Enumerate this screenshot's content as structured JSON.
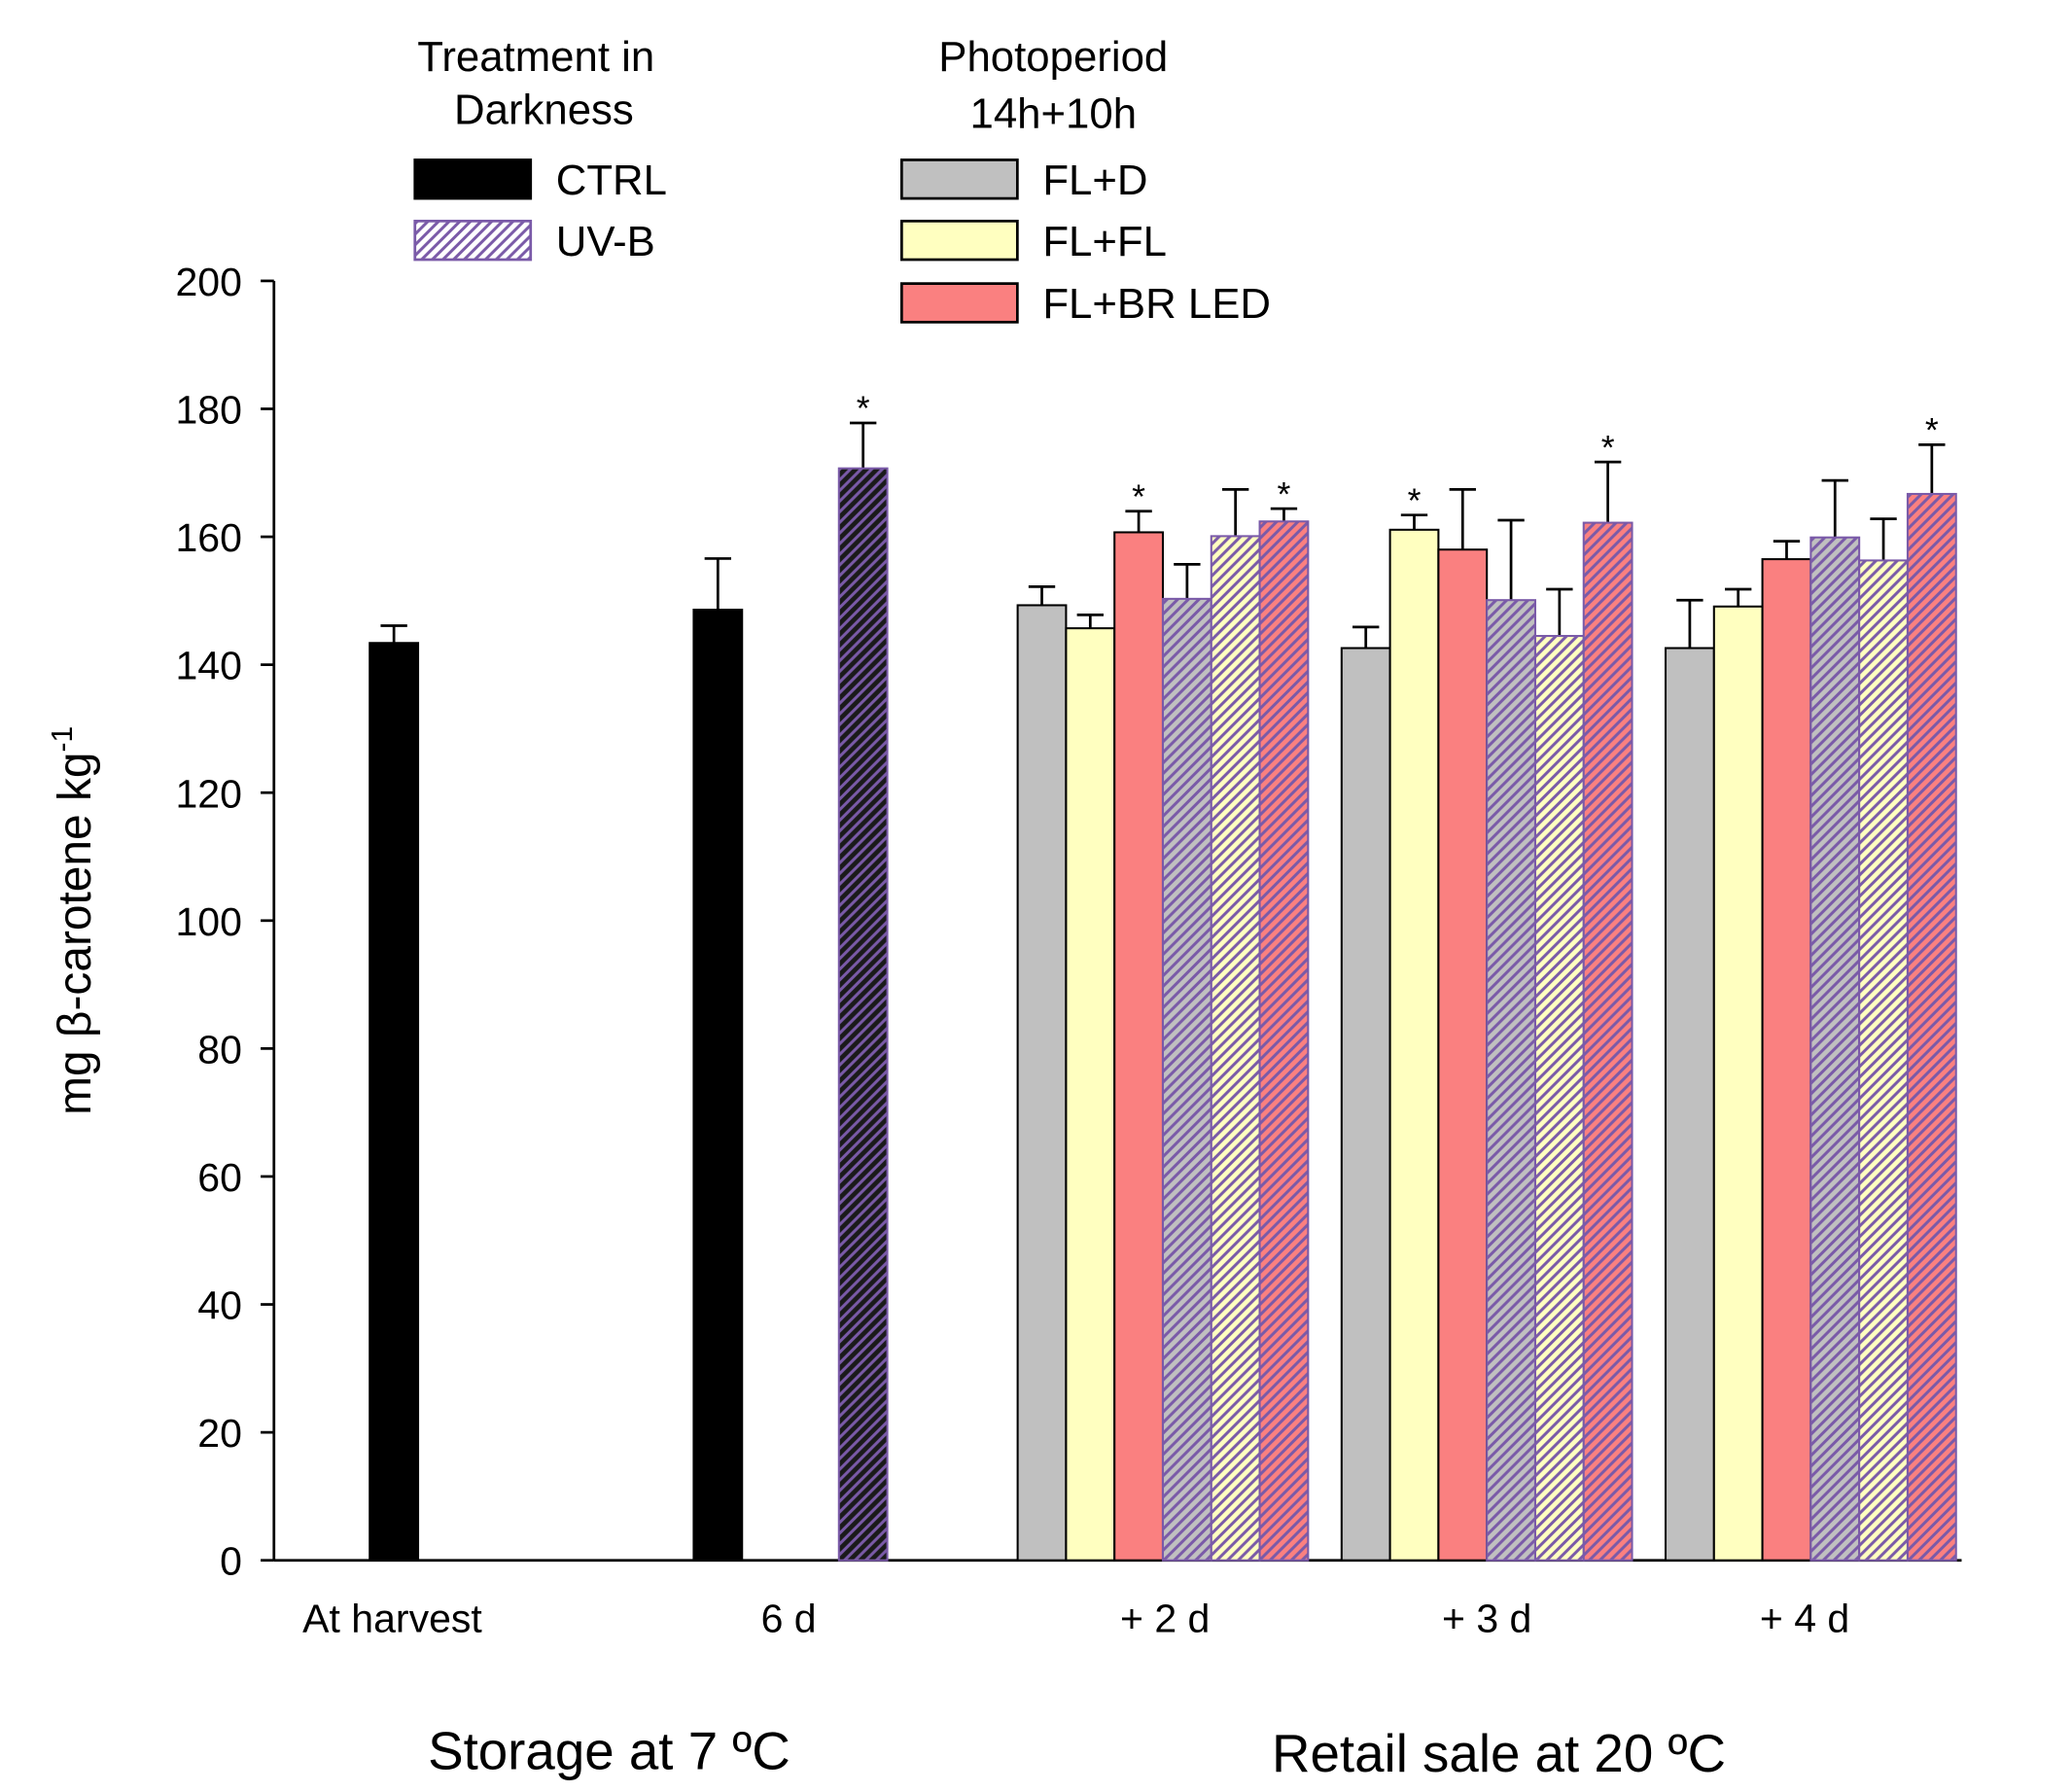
{
  "chart_data": {
    "type": "bar",
    "y_label": "mg β-carotene kg",
    "y_label_superscript": "-1",
    "group_labels": [
      "Storage at 7 ºC",
      "Retail sale at 20 ºC"
    ],
    "legend_titles": [
      [
        "Treatment in",
        "Darkness"
      ],
      [
        "Photoperiod",
        "14h+10h"
      ]
    ],
    "categories": [
      "At harvest",
      "6 d",
      "+ 2 d",
      "+ 3 d",
      "+ 4 d"
    ],
    "ylim": [
      0,
      200
    ],
    "yticks": [
      0,
      20,
      40,
      60,
      80,
      100,
      120,
      140,
      160,
      180,
      200
    ],
    "hatch_color": "#7a5aa8",
    "series": [
      {
        "name": "CTRL",
        "color": "#000000",
        "hatch": false,
        "values": [
          143.4,
          148.6,
          null,
          null,
          null
        ],
        "errors": [
          2.7,
          8.0,
          null,
          null,
          null
        ],
        "significance": [
          null,
          null,
          null,
          null,
          null
        ]
      },
      {
        "name": "UV-B",
        "color": "#1a1a1a",
        "legend_color": "#ffffff",
        "hatch": true,
        "values": [
          null,
          170.7,
          null,
          null,
          null
        ],
        "errors": [
          null,
          7.1,
          null,
          null,
          null
        ],
        "significance": [
          null,
          "*",
          null,
          null,
          null
        ]
      },
      {
        "name": "FL+D",
        "color": "#c0c0c0",
        "hatch": false,
        "values": [
          null,
          null,
          149.3,
          142.6,
          142.6
        ],
        "errors": [
          null,
          null,
          2.9,
          3.3,
          7.5
        ],
        "significance": [
          null,
          null,
          null,
          null,
          null
        ]
      },
      {
        "name": "FL+FL",
        "color": "#ffffc0",
        "hatch": false,
        "values": [
          null,
          null,
          145.7,
          161.1,
          149.1
        ],
        "errors": [
          null,
          null,
          2.1,
          2.3,
          2.7
        ],
        "significance": [
          null,
          null,
          null,
          "*",
          null
        ]
      },
      {
        "name": "FL+BR LED",
        "color": "#fa8080",
        "hatch": false,
        "values": [
          null,
          null,
          160.7,
          158.0,
          156.5
        ],
        "errors": [
          null,
          null,
          3.3,
          9.4,
          2.8
        ],
        "significance": [
          null,
          null,
          "*",
          null,
          null
        ]
      },
      {
        "color": "#c0c0c0",
        "hatch": true,
        "values": [
          null,
          null,
          150.3,
          150.1,
          159.9
        ],
        "errors": [
          null,
          null,
          5.4,
          12.5,
          8.9
        ],
        "significance": [
          null,
          null,
          null,
          null,
          null
        ]
      },
      {
        "color": "#ffffc0",
        "hatch": true,
        "values": [
          null,
          null,
          160.1,
          144.5,
          156.3
        ],
        "errors": [
          null,
          null,
          7.3,
          7.3,
          6.5
        ],
        "significance": [
          null,
          null,
          null,
          null,
          null
        ]
      },
      {
        "color": "#fa8080",
        "hatch": true,
        "values": [
          null,
          null,
          162.4,
          162.2,
          166.7
        ],
        "errors": [
          null,
          null,
          2.0,
          9.5,
          7.7
        ],
        "significance": [
          null,
          null,
          "*",
          "*",
          "*"
        ]
      }
    ]
  }
}
